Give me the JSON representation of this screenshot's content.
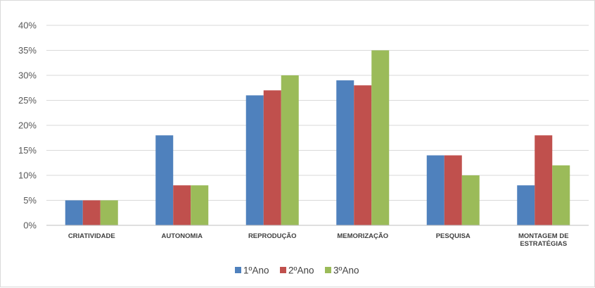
{
  "chart_data": {
    "type": "bar",
    "categories": [
      [
        "CRIATIVIDADE"
      ],
      [
        "AUTONOMIA"
      ],
      [
        "REPRODUÇÃO"
      ],
      [
        "MEMORIZAÇÃO"
      ],
      [
        "PESQUISA"
      ],
      [
        "MONTAGEM DE",
        "ESTRATÉGIAS"
      ]
    ],
    "series": [
      {
        "name": "1ºAno",
        "color": "#4f81bd",
        "values": [
          5,
          18,
          26,
          29,
          14,
          8
        ]
      },
      {
        "name": "2ºAno",
        "color": "#c0504d",
        "values": [
          5,
          8,
          27,
          28,
          14,
          18
        ]
      },
      {
        "name": "3ºAno",
        "color": "#9bbb59",
        "values": [
          5,
          8,
          30,
          35,
          10,
          12
        ]
      }
    ],
    "y_ticks": [
      "0%",
      "5%",
      "10%",
      "15%",
      "20%",
      "25%",
      "30%",
      "35%",
      "40%"
    ],
    "ylim": [
      0,
      40
    ],
    "y_unit": "%",
    "grid": true,
    "legend_position": "bottom",
    "title": "",
    "xlabel": "",
    "ylabel": ""
  }
}
